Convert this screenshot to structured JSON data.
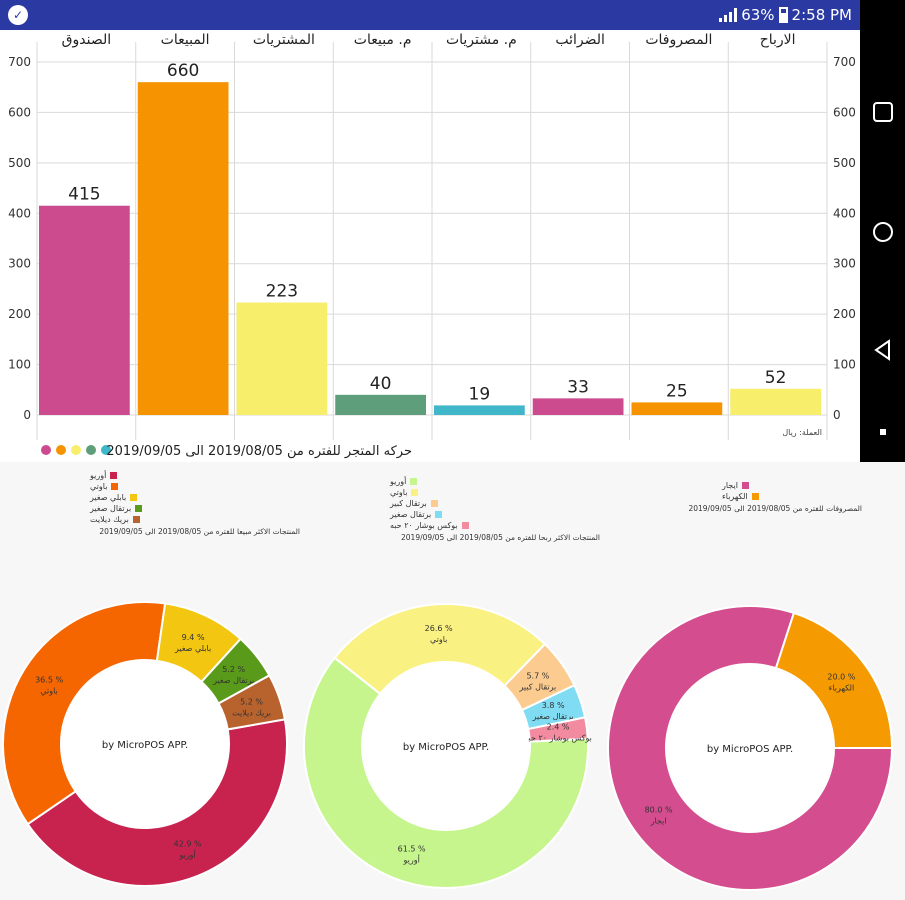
{
  "status_bar": {
    "battery": "63%",
    "time": "2:58 PM"
  },
  "colors": {
    "status_bar_bg": "#2b3aa3",
    "bar_pink": "#cc4b8e",
    "bar_orange": "#f59300",
    "bar_yellow": "#f7ee6b",
    "bar_green": "#5e9e7a",
    "bar_teal": "#3fb7c8"
  },
  "chart_data": [
    {
      "type": "bar",
      "title": "حركه المتجر للفتره من 2019/08/05 الى 2019/09/05",
      "currency_note": "العملة: ريال",
      "categories": [
        "الصندوق",
        "المبيعات",
        "المشتريات",
        "م. مبيعات",
        "م. مشتريات",
        "الضرائب",
        "المصروفات",
        "الارباح"
      ],
      "values": [
        415,
        660,
        223,
        40,
        19,
        33,
        25,
        52
      ],
      "colors": [
        "#cc4b8e",
        "#f59300",
        "#f7ee6b",
        "#5e9e7a",
        "#3fb7c8",
        "#cc4b8e",
        "#f59300",
        "#f7ee6b"
      ],
      "ylim": [
        0,
        700
      ],
      "yticks": [
        0,
        100,
        200,
        300,
        400,
        500,
        600,
        700
      ],
      "legend_dots": [
        "#cc4b8e",
        "#f59300",
        "#f7ee6b",
        "#5e9e7a",
        "#3fb7c8"
      ],
      "grid": true
    },
    {
      "type": "pie",
      "title": "المنتجات الاكثر مبيعا للفتره من 2019/08/05 الى 2019/09/05",
      "center_text": "by MicroPOS APP.",
      "slices": [
        {
          "label": "أوريو",
          "value": 42.9,
          "color": "#c8224e"
        },
        {
          "label": "باوتي",
          "value": 36.5,
          "color": "#f56500"
        },
        {
          "label": "بابلي صغير",
          "value": 9.4,
          "color": "#f2c611"
        },
        {
          "label": "برتقال صغير",
          "value": 5.2,
          "color": "#5a9a1a"
        },
        {
          "label": "بريك ديلايت",
          "value": 5.2,
          "color": "#b8632e"
        }
      ],
      "start_angle_deg": 80
    },
    {
      "type": "pie",
      "title": "المنتجات الاكثر ربحا للفتره من 2019/08/05 الى 2019/09/05",
      "center_text": "by MicroPOS APP.",
      "slices": [
        {
          "label": "أوريو",
          "value": 61.5,
          "color": "#c5f58c"
        },
        {
          "label": "باوتي",
          "value": 26.6,
          "color": "#faf183"
        },
        {
          "label": "برتقال كبير",
          "value": 5.7,
          "color": "#fbcb8f"
        },
        {
          "label": "برتقال صغير",
          "value": 3.8,
          "color": "#80dcf2"
        },
        {
          "label": "بوكس بوشار ٢٠ حبه",
          "value": 2.4,
          "color": "#f28aa0"
        }
      ],
      "start_angle_deg": 87
    },
    {
      "type": "pie",
      "title": "المصروفات للفتره من 2019/08/05 الى 2019/09/05",
      "center_text": "by MicroPOS APP.",
      "slices": [
        {
          "label": "ايجار",
          "value": 80.0,
          "color": "#d44d8e"
        },
        {
          "label": "الكهرباء",
          "value": 20.0,
          "color": "#f59a00"
        }
      ],
      "start_angle_deg": 90
    }
  ]
}
